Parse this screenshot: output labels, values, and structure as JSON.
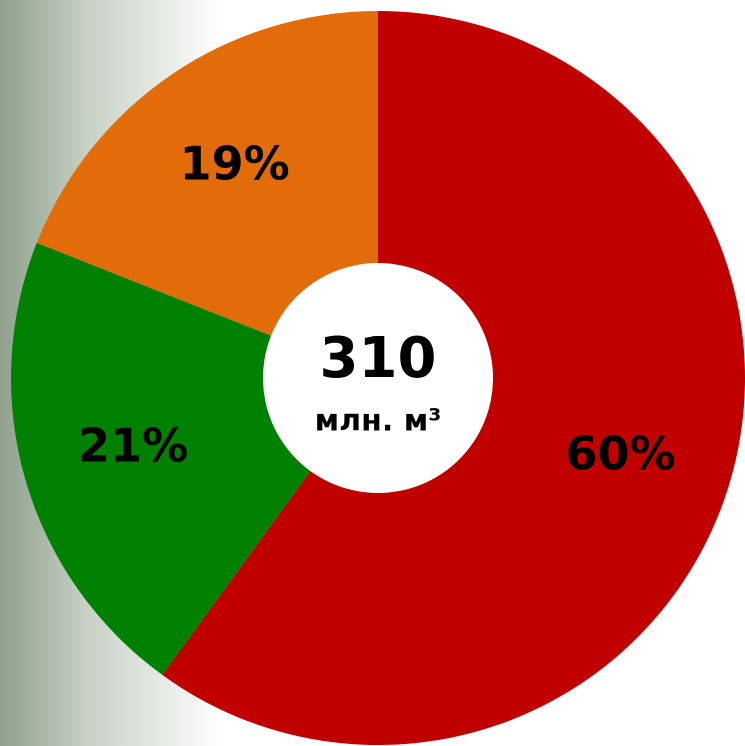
{
  "chart_data": {
    "type": "donut",
    "values": [
      60,
      21,
      19
    ],
    "value_labels": [
      "60%",
      "21%",
      "19%"
    ],
    "colors": [
      "#c00000",
      "#008000",
      "#e36c0a"
    ],
    "center_value": 310,
    "center_unit": "млн. м³"
  }
}
